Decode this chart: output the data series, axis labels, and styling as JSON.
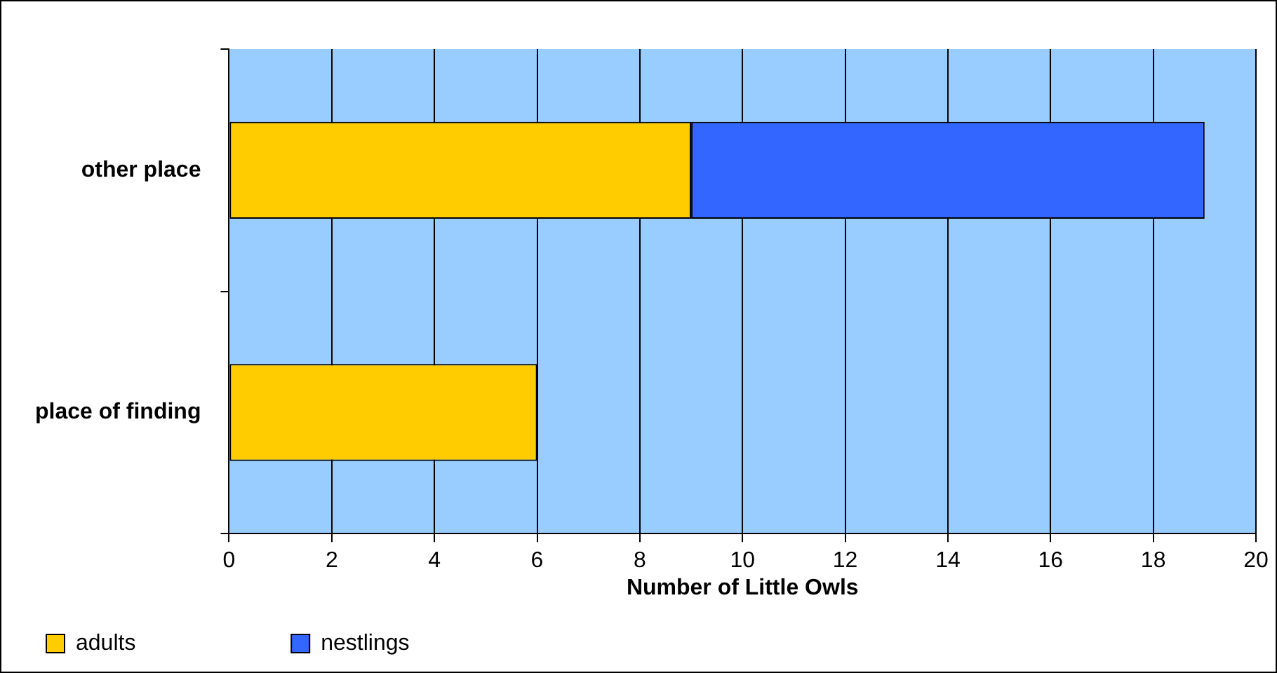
{
  "chart_data": {
    "type": "bar",
    "orientation": "horizontal",
    "stacked": true,
    "categories": [
      "other place",
      "place of finding"
    ],
    "series": [
      {
        "name": "adults",
        "color": "#ffcc00",
        "values": [
          9,
          6
        ]
      },
      {
        "name": "nestlings",
        "color": "#3366ff",
        "values": [
          10,
          null
        ]
      }
    ],
    "xlabel": "Number of Little Owls",
    "xlim": [
      0,
      20
    ],
    "xticks": [
      0,
      2,
      4,
      6,
      8,
      10,
      12,
      14,
      16,
      18,
      20
    ],
    "grid": "x",
    "legend": "bottom left"
  }
}
